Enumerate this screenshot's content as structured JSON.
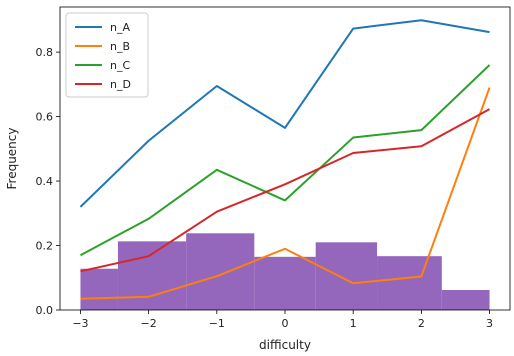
{
  "chart_data": {
    "type": "line",
    "xlabel": "difficulty",
    "ylabel": "Frequency",
    "xlim": [
      -3.3,
      3.3
    ],
    "ylim": [
      0,
      0.94
    ],
    "xticks": [
      -3,
      -2,
      -1,
      0,
      1,
      2,
      3
    ],
    "xtick_labels": [
      "−3",
      "−2",
      "−1",
      "0",
      "1",
      "2",
      "3"
    ],
    "yticks": [
      0.0,
      0.2,
      0.4,
      0.6,
      0.8
    ],
    "ytick_labels": [
      "0.0",
      "0.2",
      "0.4",
      "0.6",
      "0.8"
    ],
    "legend_position": "top-left",
    "x": [
      -3,
      -2,
      -1,
      0,
      1,
      2,
      3
    ],
    "series": [
      {
        "name": "n_A",
        "color": "#1f77b4",
        "values": [
          0.32,
          0.525,
          0.695,
          0.565,
          0.873,
          0.899,
          0.862
        ]
      },
      {
        "name": "n_B",
        "color": "#ff7f0e",
        "values": [
          0.035,
          0.041,
          0.105,
          0.19,
          0.083,
          0.104,
          0.69
        ]
      },
      {
        "name": "n_C",
        "color": "#2ca02c",
        "values": [
          0.17,
          0.283,
          0.435,
          0.34,
          0.535,
          0.558,
          0.76
        ]
      },
      {
        "name": "n_D",
        "color": "#d62728",
        "values": [
          0.12,
          0.167,
          0.305,
          0.39,
          0.487,
          0.508,
          0.623
        ]
      }
    ],
    "histogram": {
      "color": "#9467bd",
      "bins": [
        {
          "x0": -3.0,
          "x1": -2.45,
          "value": 0.128
        },
        {
          "x0": -2.45,
          "x1": -1.45,
          "value": 0.213
        },
        {
          "x0": -1.45,
          "x1": -0.45,
          "value": 0.238
        },
        {
          "x0": -0.45,
          "x1": 0.45,
          "value": 0.165
        },
        {
          "x0": 0.45,
          "x1": 1.35,
          "value": 0.21
        },
        {
          "x0": 1.35,
          "x1": 2.3,
          "value": 0.167
        },
        {
          "x0": 2.3,
          "x1": 3.0,
          "value": 0.062
        }
      ]
    }
  }
}
